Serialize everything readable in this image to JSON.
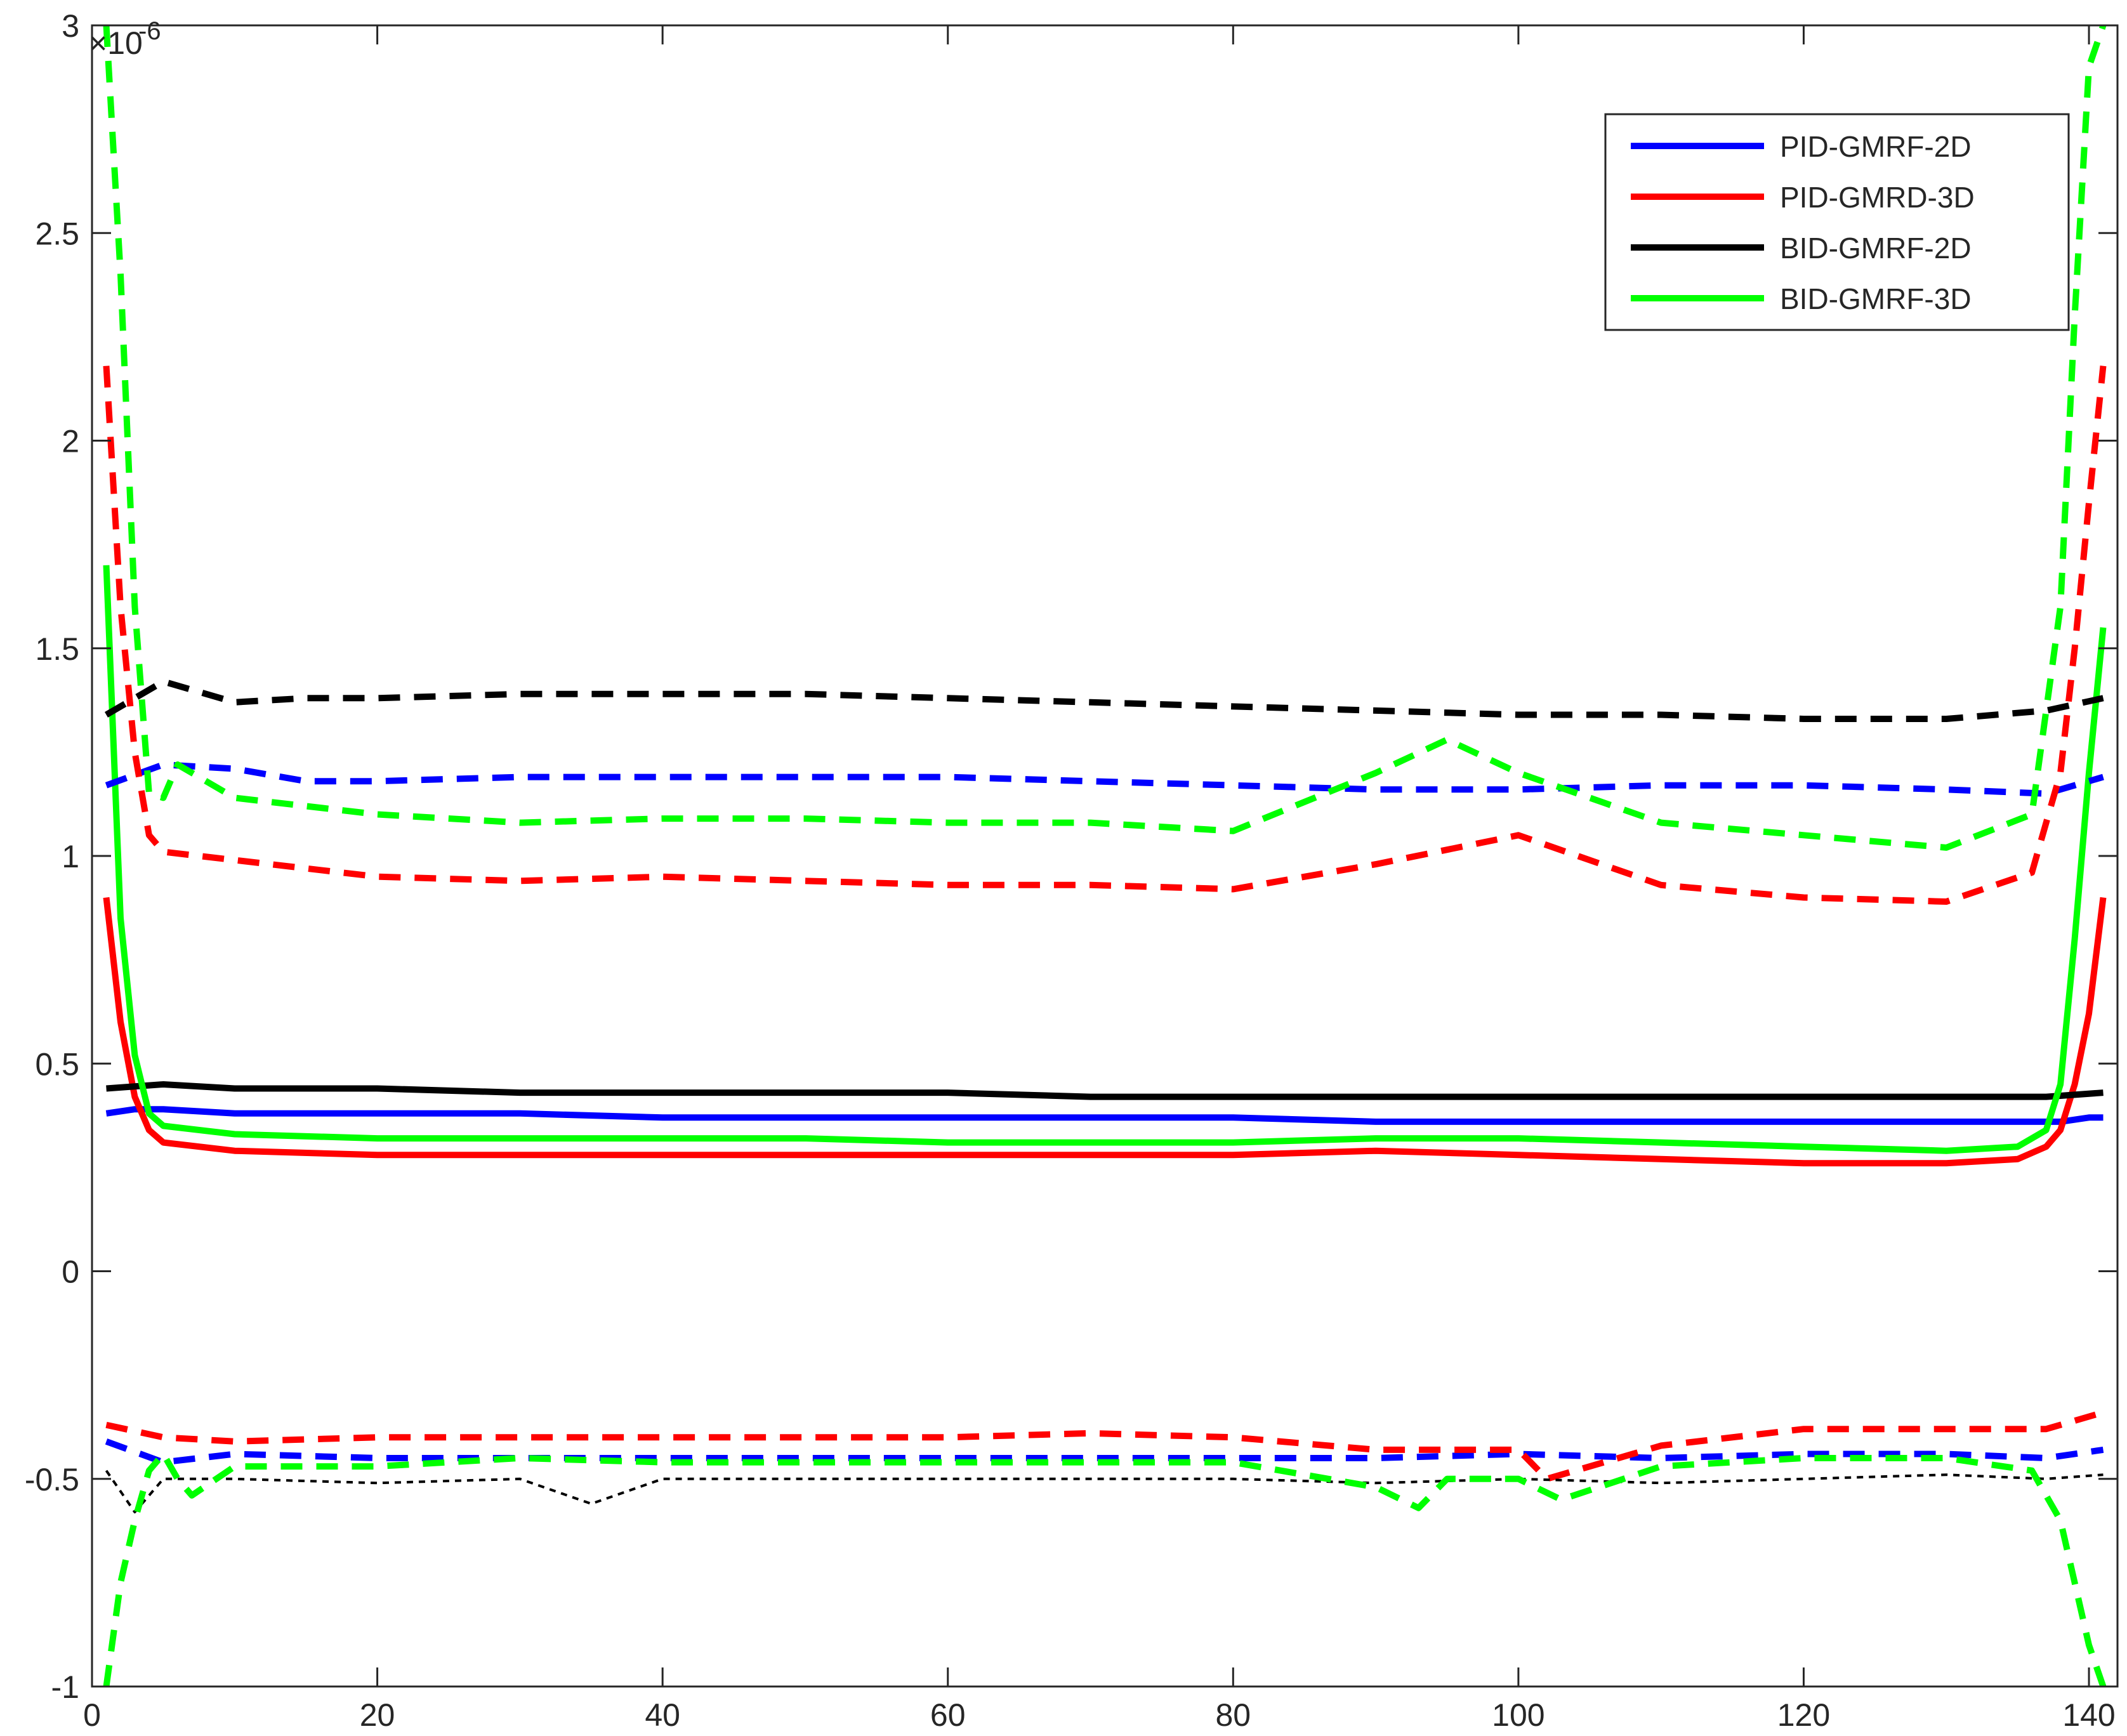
{
  "chart_data": {
    "type": "line",
    "title": "",
    "xlabel": "",
    "ylabel": "",
    "xlim": [
      0,
      142
    ],
    "ylim": [
      -1.0,
      3.0
    ],
    "y_exponent_label": "×10",
    "y_exponent_power": "-6",
    "x_ticks": [
      0,
      20,
      40,
      60,
      80,
      100,
      120,
      140
    ],
    "x_tick_labels": [
      "0",
      "20",
      "40",
      "60",
      "80",
      "100",
      "120",
      "140"
    ],
    "y_ticks": [
      -1.0,
      -0.5,
      0.0,
      0.5,
      1.0,
      1.5,
      2.0,
      2.5,
      3.0
    ],
    "y_tick_labels": [
      "-1",
      "-0.5",
      "0",
      "0.5",
      "1",
      "1.5",
      "2",
      "2.5",
      "3"
    ],
    "grid": false,
    "legend": {
      "position": "top-right",
      "entries": [
        {
          "label": "PID-GMRF-2D",
          "color": "#0000ff"
        },
        {
          "label": "PID-GMRD-3D",
          "color": "#ff0000"
        },
        {
          "label": "BID-GMRF-2D",
          "color": "#000000"
        },
        {
          "label": "BID-GMRF-3D",
          "color": "#00ff00"
        }
      ]
    },
    "series": [
      {
        "name": "PID-GMRF-2D",
        "color": "#0000ff",
        "style": "solid",
        "x": [
          1,
          3,
          5,
          10,
          20,
          30,
          40,
          50,
          60,
          70,
          80,
          90,
          100,
          110,
          120,
          130,
          136,
          138,
          140,
          141
        ],
        "y": [
          0.38,
          0.39,
          0.39,
          0.38,
          0.38,
          0.38,
          0.37,
          0.37,
          0.37,
          0.37,
          0.37,
          0.36,
          0.36,
          0.36,
          0.36,
          0.36,
          0.36,
          0.36,
          0.37,
          0.37
        ]
      },
      {
        "name": "PID-GMRD-3D",
        "color": "#ff0000",
        "style": "solid",
        "x": [
          1,
          2,
          3,
          4,
          5,
          10,
          20,
          30,
          40,
          50,
          60,
          70,
          80,
          90,
          100,
          110,
          120,
          130,
          135,
          137,
          138,
          139,
          140,
          141
        ],
        "y": [
          0.9,
          0.6,
          0.42,
          0.34,
          0.31,
          0.29,
          0.28,
          0.28,
          0.28,
          0.28,
          0.28,
          0.28,
          0.28,
          0.29,
          0.28,
          0.27,
          0.26,
          0.26,
          0.27,
          0.3,
          0.34,
          0.45,
          0.62,
          0.9
        ]
      },
      {
        "name": "BID-GMRF-2D",
        "color": "#000000",
        "style": "solid",
        "x": [
          1,
          5,
          10,
          20,
          30,
          40,
          50,
          60,
          70,
          80,
          90,
          100,
          110,
          120,
          130,
          137,
          141
        ],
        "y": [
          0.44,
          0.45,
          0.44,
          0.44,
          0.43,
          0.43,
          0.43,
          0.43,
          0.42,
          0.42,
          0.42,
          0.42,
          0.42,
          0.42,
          0.42,
          0.42,
          0.43
        ]
      },
      {
        "name": "BID-GMRF-3D",
        "color": "#00ff00",
        "style": "solid",
        "x": [
          1,
          2,
          3,
          4,
          5,
          10,
          20,
          30,
          40,
          50,
          60,
          70,
          80,
          90,
          100,
          110,
          120,
          130,
          135,
          137,
          138,
          139,
          140,
          141
        ],
        "y": [
          1.7,
          0.85,
          0.52,
          0.38,
          0.35,
          0.33,
          0.32,
          0.32,
          0.32,
          0.32,
          0.31,
          0.31,
          0.31,
          0.32,
          0.32,
          0.31,
          0.3,
          0.29,
          0.3,
          0.34,
          0.45,
          0.8,
          1.2,
          1.55
        ]
      },
      {
        "name": "PID-GMRF-2D upper",
        "color": "#0000ff",
        "style": "dashed",
        "x": [
          1,
          5,
          10,
          15,
          20,
          30,
          40,
          50,
          60,
          70,
          80,
          90,
          100,
          110,
          120,
          130,
          137,
          141
        ],
        "y": [
          1.17,
          1.22,
          1.21,
          1.18,
          1.18,
          1.19,
          1.19,
          1.19,
          1.19,
          1.18,
          1.17,
          1.16,
          1.16,
          1.17,
          1.17,
          1.16,
          1.15,
          1.19
        ]
      },
      {
        "name": "PID-GMRD-3D upper",
        "color": "#ff0000",
        "style": "dashed",
        "x": [
          1,
          2,
          3,
          4,
          5,
          10,
          20,
          30,
          40,
          50,
          60,
          70,
          80,
          90,
          100,
          110,
          120,
          130,
          136,
          138,
          139,
          140,
          141
        ],
        "y": [
          2.18,
          1.6,
          1.25,
          1.05,
          1.01,
          0.99,
          0.95,
          0.94,
          0.95,
          0.94,
          0.93,
          0.93,
          0.92,
          0.98,
          1.05,
          0.93,
          0.9,
          0.89,
          0.96,
          1.2,
          1.5,
          1.85,
          2.18
        ]
      },
      {
        "name": "BID-GMRF-2D upper",
        "color": "#000000",
        "style": "dashed",
        "x": [
          1,
          5,
          10,
          15,
          20,
          30,
          40,
          50,
          60,
          70,
          80,
          90,
          100,
          110,
          120,
          130,
          137,
          141
        ],
        "y": [
          1.34,
          1.42,
          1.37,
          1.38,
          1.38,
          1.39,
          1.39,
          1.39,
          1.38,
          1.37,
          1.36,
          1.35,
          1.34,
          1.34,
          1.33,
          1.33,
          1.35,
          1.38
        ]
      },
      {
        "name": "BID-GMRF-3D upper",
        "color": "#00ff00",
        "style": "dashed",
        "x": [
          1,
          2,
          3,
          4,
          5,
          6,
          10,
          20,
          30,
          40,
          50,
          60,
          70,
          80,
          90,
          95,
          100,
          110,
          120,
          130,
          136,
          138,
          139,
          140,
          141
        ],
        "y": [
          3.0,
          2.4,
          1.6,
          1.15,
          1.14,
          1.22,
          1.14,
          1.1,
          1.08,
          1.09,
          1.09,
          1.08,
          1.08,
          1.06,
          1.2,
          1.28,
          1.2,
          1.08,
          1.05,
          1.02,
          1.1,
          1.6,
          2.3,
          2.9,
          3.0
        ]
      },
      {
        "name": "PID-GMRF-2D lower",
        "color": "#0000ff",
        "style": "dashed",
        "x": [
          1,
          5,
          10,
          20,
          30,
          40,
          50,
          60,
          70,
          80,
          90,
          100,
          110,
          120,
          130,
          137,
          141
        ],
        "y": [
          -0.41,
          -0.46,
          -0.44,
          -0.45,
          -0.45,
          -0.45,
          -0.45,
          -0.45,
          -0.45,
          -0.45,
          -0.45,
          -0.44,
          -0.45,
          -0.44,
          -0.44,
          -0.45,
          -0.43
        ]
      },
      {
        "name": "PID-GMRD-3D lower",
        "color": "#ff0000",
        "style": "dashed",
        "x": [
          1,
          5,
          10,
          20,
          30,
          40,
          50,
          60,
          70,
          80,
          90,
          100,
          102,
          110,
          120,
          130,
          137,
          141
        ],
        "y": [
          -0.37,
          -0.4,
          -0.41,
          -0.4,
          -0.4,
          -0.4,
          -0.4,
          -0.4,
          -0.39,
          -0.4,
          -0.43,
          -0.43,
          -0.5,
          -0.42,
          -0.38,
          -0.38,
          -0.38,
          -0.34
        ]
      },
      {
        "name": "BID-GMRF-2D lower",
        "color": "#000000",
        "style": "dotted",
        "x": [
          1,
          3,
          5,
          10,
          20,
          30,
          35,
          40,
          50,
          60,
          70,
          80,
          90,
          100,
          110,
          120,
          130,
          137,
          141
        ],
        "y": [
          -0.48,
          -0.58,
          -0.5,
          -0.5,
          -0.51,
          -0.5,
          -0.56,
          -0.5,
          -0.5,
          -0.5,
          -0.5,
          -0.5,
          -0.51,
          -0.5,
          -0.51,
          -0.5,
          -0.49,
          -0.5,
          -0.49
        ]
      },
      {
        "name": "BID-GMRF-3D lower",
        "color": "#00ff00",
        "style": "dashed",
        "x": [
          1,
          2,
          3,
          4,
          5,
          6,
          7,
          10,
          20,
          30,
          40,
          50,
          60,
          70,
          80,
          90,
          93,
          95,
          100,
          103,
          110,
          120,
          130,
          136,
          138,
          139,
          140,
          141
        ],
        "y": [
          -1.0,
          -0.75,
          -0.6,
          -0.48,
          -0.44,
          -0.5,
          -0.54,
          -0.47,
          -0.47,
          -0.45,
          -0.46,
          -0.46,
          -0.46,
          -0.46,
          -0.46,
          -0.52,
          -0.57,
          -0.5,
          -0.5,
          -0.55,
          -0.47,
          -0.45,
          -0.45,
          -0.48,
          -0.6,
          -0.75,
          -0.9,
          -1.0
        ]
      }
    ]
  }
}
